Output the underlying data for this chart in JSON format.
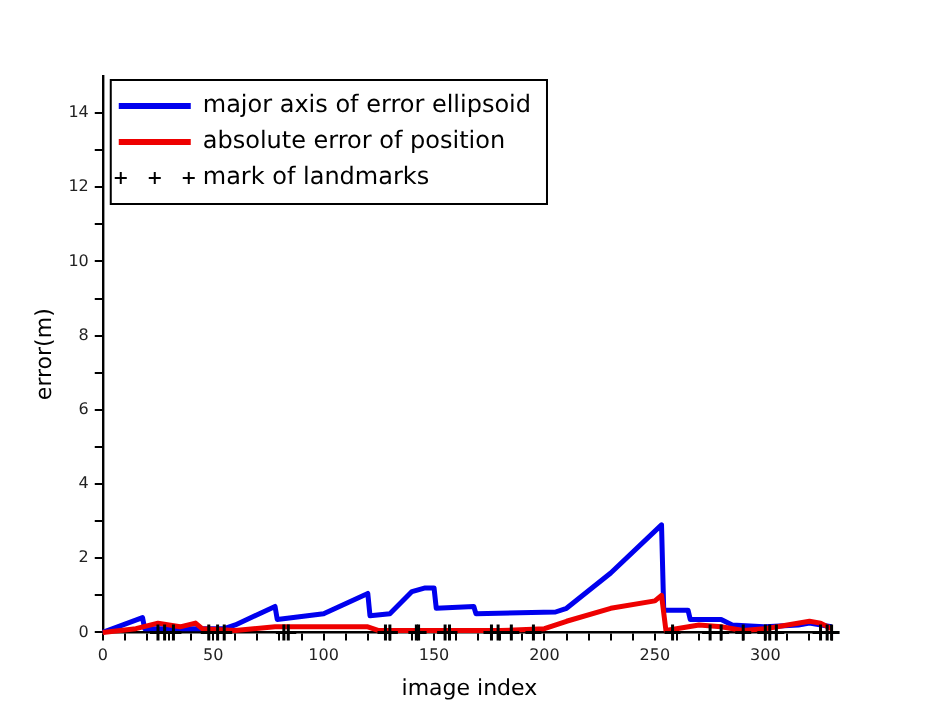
{
  "chart_data": {
    "type": "line",
    "xlabel": "image index",
    "ylabel": "error(m)",
    "legend": "top left",
    "grid": false,
    "line_style": "solid",
    "xlim": [
      0,
      332
    ],
    "ylim": [
      0,
      15
    ],
    "xticks": [
      0,
      {
        "value": 10,
        "label": null
      },
      {
        "value": 20,
        "label": null
      },
      {
        "value": 30,
        "label": null
      },
      {
        "value": 40,
        "label": null
      },
      50,
      {
        "value": 60,
        "label": null
      },
      {
        "value": 70,
        "label": null
      },
      {
        "value": 80,
        "label": null
      },
      {
        "value": 90,
        "label": null
      },
      100,
      {
        "value": 110,
        "label": null
      },
      {
        "value": 120,
        "label": null
      },
      {
        "value": 130,
        "label": null
      },
      {
        "value": 140,
        "label": null
      },
      150,
      {
        "value": 160,
        "label": null
      },
      {
        "value": 170,
        "label": null
      },
      {
        "value": 180,
        "label": null
      },
      {
        "value": 190,
        "label": null
      },
      200,
      {
        "value": 210,
        "label": null
      },
      {
        "value": 220,
        "label": null
      },
      {
        "value": 230,
        "label": null
      },
      {
        "value": 240,
        "label": null
      },
      250,
      {
        "value": 260,
        "label": null
      },
      {
        "value": 270,
        "label": null
      },
      {
        "value": 280,
        "label": null
      },
      {
        "value": 290,
        "label": null
      },
      300,
      {
        "value": 310,
        "label": null
      },
      {
        "value": 320,
        "label": null
      },
      {
        "value": 330,
        "label": null
      }
    ],
    "yticks": [
      0,
      {
        "value": 1,
        "label": null
      },
      2,
      {
        "value": 3,
        "label": null
      },
      4,
      {
        "value": 5,
        "label": null
      },
      6,
      {
        "value": 7,
        "label": null
      },
      8,
      {
        "value": 9,
        "label": null
      },
      10,
      {
        "value": 11,
        "label": null
      },
      12,
      {
        "value": 13,
        "label": null
      },
      14
    ],
    "series": [
      {
        "name": "major axis of error ellipsoid",
        "color": "#0000ee",
        "marker": "none",
        "x": [
          0,
          18,
          19,
          55,
          60,
          78,
          79,
          100,
          120,
          121,
          130,
          140,
          146,
          150,
          151,
          168,
          169,
          205,
          210,
          230,
          253,
          254,
          265,
          266,
          280,
          285,
          300,
          315,
          320,
          330
        ],
        "values": [
          0,
          0.4,
          0.1,
          0.1,
          0.2,
          0.7,
          0.35,
          0.5,
          1.05,
          0.45,
          0.5,
          1.1,
          1.2,
          1.2,
          0.65,
          0.7,
          0.5,
          0.55,
          0.65,
          1.6,
          2.9,
          0.6,
          0.6,
          0.35,
          0.35,
          0.2,
          0.15,
          0.2,
          0.25,
          0.15
        ]
      },
      {
        "name": "absolute error of position",
        "color": "#ee0000",
        "marker": "none",
        "x": [
          0,
          15,
          25,
          35,
          42,
          45,
          60,
          78,
          120,
          125,
          180,
          200,
          210,
          230,
          250,
          253,
          255,
          270,
          280,
          290,
          300,
          320,
          325,
          330
        ],
        "values": [
          0,
          0.1,
          0.25,
          0.15,
          0.25,
          0.1,
          0.05,
          0.15,
          0.15,
          0.05,
          0.05,
          0.1,
          0.3,
          0.65,
          0.85,
          1.0,
          0.05,
          0.2,
          0.15,
          0.05,
          0.1,
          0.3,
          0.25,
          0.1
        ]
      },
      {
        "name": "mark of landmarks",
        "color": "#000000",
        "type": "scatter",
        "marker": "cross",
        "x": [
          25,
          28,
          32,
          48,
          52,
          55,
          82,
          84,
          128,
          130,
          142,
          143,
          155,
          157,
          176,
          179,
          185,
          195,
          258,
          275,
          280,
          290,
          300,
          302,
          305,
          325,
          328,
          330
        ],
        "values": [
          0,
          0,
          0,
          0,
          0,
          0,
          0,
          0,
          0,
          0,
          0,
          0,
          0,
          0,
          0,
          0,
          0,
          0,
          0,
          0,
          0,
          0,
          0,
          0,
          0,
          0,
          0,
          0
        ]
      }
    ]
  }
}
